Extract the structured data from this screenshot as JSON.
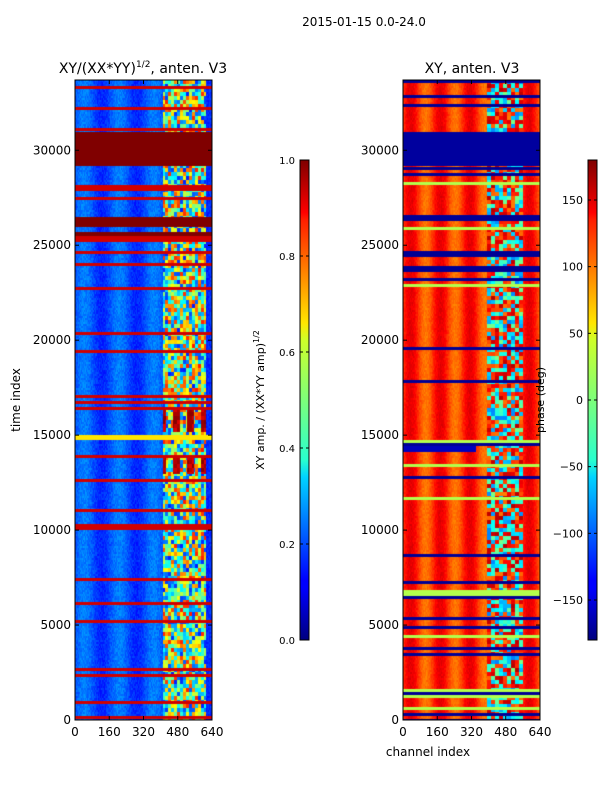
{
  "figure": {
    "suptitle": "2015-01-15 0.0-24.0"
  },
  "colormap": "jet",
  "chart_data": [
    {
      "type": "heatmap",
      "id": "amp",
      "title_main": "XY/(XX*YY)",
      "title_sup": "1/2",
      "title_tail": ", anten. V3",
      "xlabel": "",
      "ylabel": "time index",
      "xlim": [
        0,
        640
      ],
      "ylim": [
        0,
        33700
      ],
      "x_ticks": [
        0,
        160,
        320,
        480,
        640
      ],
      "y_ticks": [
        0,
        5000,
        10000,
        15000,
        20000,
        25000,
        30000
      ],
      "colorbar": {
        "label_main": "XY amp. / (XX*YY amp)",
        "label_sup": "1/2",
        "range": [
          0.0,
          1.0
        ],
        "ticks": [
          0.0,
          0.2,
          0.4,
          0.6,
          0.8,
          1.0
        ],
        "tick_labels": [
          "0.0",
          "0.2",
          "0.4",
          "0.6",
          "0.8",
          "1.0"
        ]
      },
      "features": {
        "saturated_bands": [
          [
            29200,
            31000
          ],
          [
            26000,
            26500
          ],
          [
            25500,
            25700
          ]
        ],
        "high_channel_region": [
          410,
          610
        ],
        "hot_patch_rows": [
          [
            13000,
            13800
          ],
          [
            15200,
            16500
          ]
        ],
        "bright_stripe": 14900
      }
    },
    {
      "type": "heatmap",
      "id": "phase",
      "title_main": "XY, anten. V3",
      "xlabel": "channel index",
      "ylabel": "",
      "xlim": [
        0,
        640
      ],
      "ylim": [
        0,
        33700
      ],
      "x_ticks": [
        0,
        160,
        320,
        480,
        640
      ],
      "y_ticks": [
        0,
        5000,
        10000,
        15000,
        20000,
        25000,
        30000
      ],
      "colorbar": {
        "label_main": "phase (deg)",
        "range": [
          -180,
          180
        ],
        "ticks": [
          -150,
          -100,
          -50,
          0,
          50,
          100,
          150
        ],
        "tick_labels": [
          "−150",
          "−100",
          "−50",
          "0",
          "50",
          "100",
          "150"
        ]
      },
      "features": {
        "low_phase_band": [
          29200,
          31000
        ],
        "noisy_channel_region": [
          390,
          560
        ],
        "dark_stripe": 14300
      }
    }
  ]
}
